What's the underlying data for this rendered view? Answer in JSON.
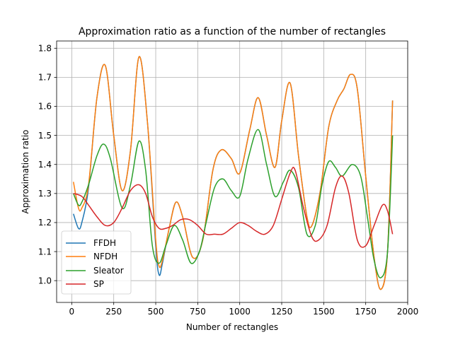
{
  "chart_data": {
    "type": "line",
    "title": "Approximation ratio as a function of the number of rectangles",
    "xlabel": "Number of rectangles",
    "ylabel": "Approximation ratio",
    "xlim": [
      -90,
      2000
    ],
    "ylim": [
      0.925,
      1.825
    ],
    "xticks": [
      0,
      250,
      500,
      750,
      1000,
      1250,
      1500,
      1750,
      2000
    ],
    "xtick_labels": [
      "0",
      "250",
      "500",
      "750",
      "1000",
      "1250",
      "1500",
      "1750",
      "2000"
    ],
    "yticks": [
      1.0,
      1.1,
      1.2,
      1.3,
      1.4,
      1.5,
      1.6,
      1.7,
      1.8
    ],
    "ytick_labels": [
      "1.0",
      "1.1",
      "1.2",
      "1.3",
      "1.4",
      "1.5",
      "1.6",
      "1.7",
      "1.8"
    ],
    "grid": true,
    "legend_position": "lower-left",
    "series": [
      {
        "name": "FFDH",
        "color": "#1f77b4",
        "x": [
          10,
          40,
          60,
          100,
          150,
          200,
          250,
          300,
          350,
          400,
          450,
          500,
          520,
          540,
          580,
          620,
          660,
          720,
          780,
          840,
          890,
          950,
          1000,
          1060,
          1110,
          1160,
          1210,
          1250,
          1300,
          1350,
          1400,
          1430,
          1480,
          1530,
          1580,
          1620,
          1660,
          1700,
          1750,
          1800,
          1840,
          1880,
          1910
        ],
        "y": [
          1.23,
          1.18,
          1.2,
          1.32,
          1.63,
          1.74,
          1.5,
          1.31,
          1.45,
          1.77,
          1.55,
          1.12,
          1.02,
          1.06,
          1.18,
          1.27,
          1.22,
          1.08,
          1.14,
          1.38,
          1.45,
          1.42,
          1.37,
          1.52,
          1.63,
          1.5,
          1.39,
          1.55,
          1.68,
          1.43,
          1.22,
          1.19,
          1.31,
          1.53,
          1.62,
          1.66,
          1.71,
          1.66,
          1.36,
          1.08,
          0.97,
          1.1,
          1.62
        ]
      },
      {
        "name": "NFDH",
        "color": "#ff7f0e",
        "x": [
          10,
          40,
          60,
          100,
          150,
          200,
          250,
          300,
          350,
          400,
          450,
          500,
          520,
          540,
          580,
          620,
          660,
          720,
          780,
          840,
          890,
          950,
          1000,
          1060,
          1110,
          1160,
          1210,
          1250,
          1300,
          1350,
          1400,
          1430,
          1480,
          1530,
          1580,
          1620,
          1660,
          1700,
          1750,
          1800,
          1840,
          1880,
          1910
        ],
        "y": [
          1.34,
          1.25,
          1.25,
          1.33,
          1.63,
          1.74,
          1.5,
          1.31,
          1.45,
          1.77,
          1.55,
          1.14,
          1.05,
          1.07,
          1.18,
          1.27,
          1.22,
          1.08,
          1.14,
          1.38,
          1.45,
          1.42,
          1.37,
          1.52,
          1.63,
          1.5,
          1.39,
          1.55,
          1.68,
          1.43,
          1.22,
          1.19,
          1.31,
          1.53,
          1.62,
          1.66,
          1.71,
          1.66,
          1.36,
          1.08,
          0.97,
          1.1,
          1.62
        ]
      },
      {
        "name": "Sleator",
        "color": "#2ca02c",
        "x": [
          10,
          40,
          60,
          100,
          150,
          190,
          230,
          300,
          350,
          400,
          440,
          480,
          520,
          560,
          610,
          660,
          710,
          760,
          800,
          850,
          900,
          950,
          1000,
          1050,
          1110,
          1160,
          1210,
          1260,
          1300,
          1350,
          1400,
          1450,
          1490,
          1530,
          1570,
          1610,
          1670,
          1720,
          1760,
          1800,
          1840,
          1880,
          1910
        ],
        "y": [
          1.3,
          1.26,
          1.27,
          1.33,
          1.43,
          1.47,
          1.42,
          1.25,
          1.33,
          1.48,
          1.38,
          1.12,
          1.06,
          1.12,
          1.19,
          1.14,
          1.06,
          1.1,
          1.2,
          1.32,
          1.35,
          1.31,
          1.29,
          1.42,
          1.52,
          1.4,
          1.29,
          1.34,
          1.38,
          1.32,
          1.16,
          1.19,
          1.33,
          1.41,
          1.39,
          1.36,
          1.4,
          1.36,
          1.22,
          1.07,
          1.01,
          1.1,
          1.5
        ]
      },
      {
        "name": "SP",
        "color": "#d62728",
        "x": [
          10,
          60,
          100,
          150,
          200,
          250,
          300,
          350,
          400,
          440,
          480,
          520,
          560,
          600,
          650,
          700,
          750,
          800,
          850,
          900,
          950,
          1000,
          1050,
          1100,
          1150,
          1200,
          1250,
          1300,
          1330,
          1380,
          1430,
          1470,
          1520,
          1570,
          1610,
          1650,
          1700,
          1750,
          1800,
          1850,
          1880,
          1910
        ],
        "y": [
          1.3,
          1.29,
          1.26,
          1.22,
          1.19,
          1.2,
          1.25,
          1.31,
          1.33,
          1.3,
          1.22,
          1.18,
          1.18,
          1.19,
          1.21,
          1.21,
          1.19,
          1.16,
          1.16,
          1.16,
          1.18,
          1.2,
          1.19,
          1.17,
          1.16,
          1.19,
          1.28,
          1.37,
          1.38,
          1.25,
          1.15,
          1.14,
          1.19,
          1.32,
          1.36,
          1.3,
          1.14,
          1.12,
          1.19,
          1.26,
          1.24,
          1.16
        ]
      }
    ]
  }
}
